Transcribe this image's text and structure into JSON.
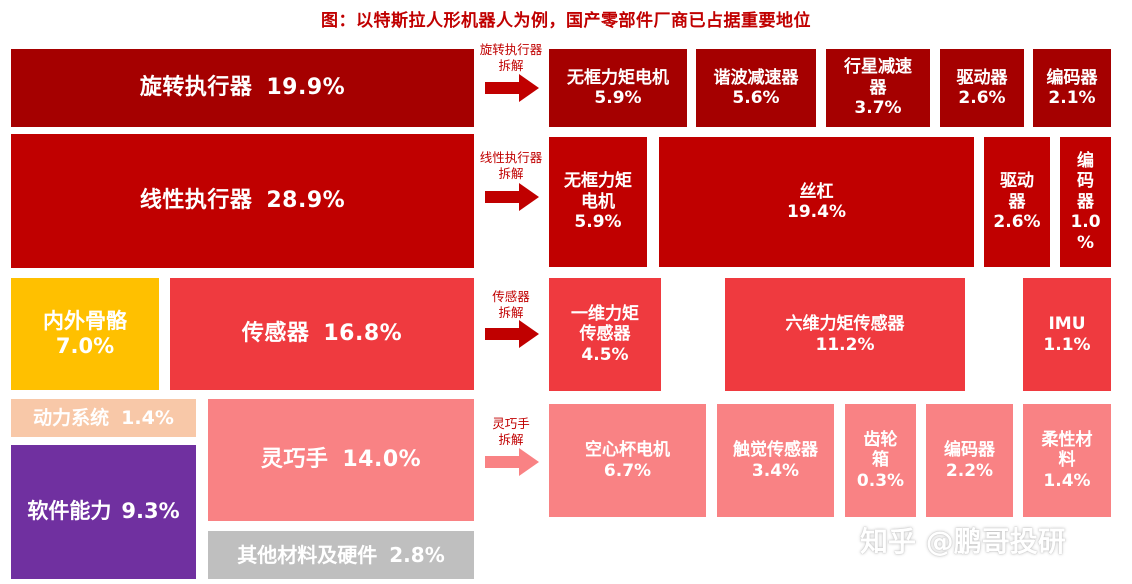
{
  "title": "图：以特斯拉人形机器人为例，国产零部件厂商已占据重要地位",
  "watermark": "知乎 @鹏哥投研",
  "colors": {
    "rotary": "#a50000",
    "linear": "#c00000",
    "sensor": "#ef3a3f",
    "hand": "#f98284",
    "exoskeleton": "#ffc000",
    "power": "#f8c8a8",
    "software": "#7030a0",
    "other": "#bfbfbf"
  },
  "left_blocks": {
    "rotary": {
      "label": "旋转执行器",
      "pct": "19.9%"
    },
    "linear": {
      "label": "线性执行器",
      "pct": "28.9%"
    },
    "exoskeleton": {
      "label": "内外骨骼",
      "pct": "7.0%"
    },
    "sensor": {
      "label": "传感器",
      "pct": "16.8%"
    },
    "power": {
      "label": "动力系统",
      "pct": "1.4%"
    },
    "hand": {
      "label": "灵巧手",
      "pct": "14.0%"
    },
    "software": {
      "label": "软件能力",
      "pct": "9.3%"
    },
    "other": {
      "label": "其他材料及硬件",
      "pct": "2.8%"
    }
  },
  "connectors": {
    "rotary": "旋转执行器\n拆解",
    "linear": "线性执行器\n拆解",
    "sensor": "传感器\n拆解",
    "hand": "灵巧手\n拆解"
  },
  "breakdown": {
    "rotary": [
      {
        "l1": "无框力矩电机",
        "l2": "",
        "l3": "",
        "pct": "5.9%"
      },
      {
        "l1": "谐波减速器",
        "l2": "",
        "l3": "",
        "pct": "5.6%"
      },
      {
        "l1": "行星减速",
        "l2": "器",
        "l3": "",
        "pct": "3.7%"
      },
      {
        "l1": "驱动器",
        "l2": "",
        "l3": "",
        "pct": "2.6%"
      },
      {
        "l1": "编码器",
        "l2": "",
        "l3": "",
        "pct": "2.1%"
      }
    ],
    "linear": [
      {
        "l1": "无框力矩",
        "l2": "电机",
        "l3": "",
        "pct": "5.9%"
      },
      {
        "l1": "丝杠",
        "l2": "",
        "l3": "",
        "pct": "19.4%"
      },
      {
        "l1": "驱动",
        "l2": "器",
        "l3": "",
        "pct": "2.6%"
      },
      {
        "l1": "编",
        "l2": "码",
        "l3": "器",
        "pct": "1.0",
        "pct2": "%"
      }
    ],
    "sensor": [
      {
        "l1": "一维力矩",
        "l2": "传感器",
        "l3": "",
        "pct": "4.5%"
      },
      {
        "l1": "六维力矩传感器",
        "l2": "",
        "l3": "",
        "pct": "11.2%"
      },
      {
        "l1": "IMU",
        "l2": "",
        "l3": "",
        "pct": "1.1%"
      }
    ],
    "hand": [
      {
        "l1": "空心杯电机",
        "l2": "",
        "l3": "",
        "pct": "6.7%"
      },
      {
        "l1": "触觉传感器",
        "l2": "",
        "l3": "",
        "pct": "3.4%"
      },
      {
        "l1": "齿轮",
        "l2": "箱",
        "l3": "",
        "pct": "0.3%"
      },
      {
        "l1": "编码器",
        "l2": "",
        "l3": "",
        "pct": "2.2%"
      },
      {
        "l1": "柔性材",
        "l2": "料",
        "l3": "",
        "pct": "1.4%"
      }
    ]
  }
}
